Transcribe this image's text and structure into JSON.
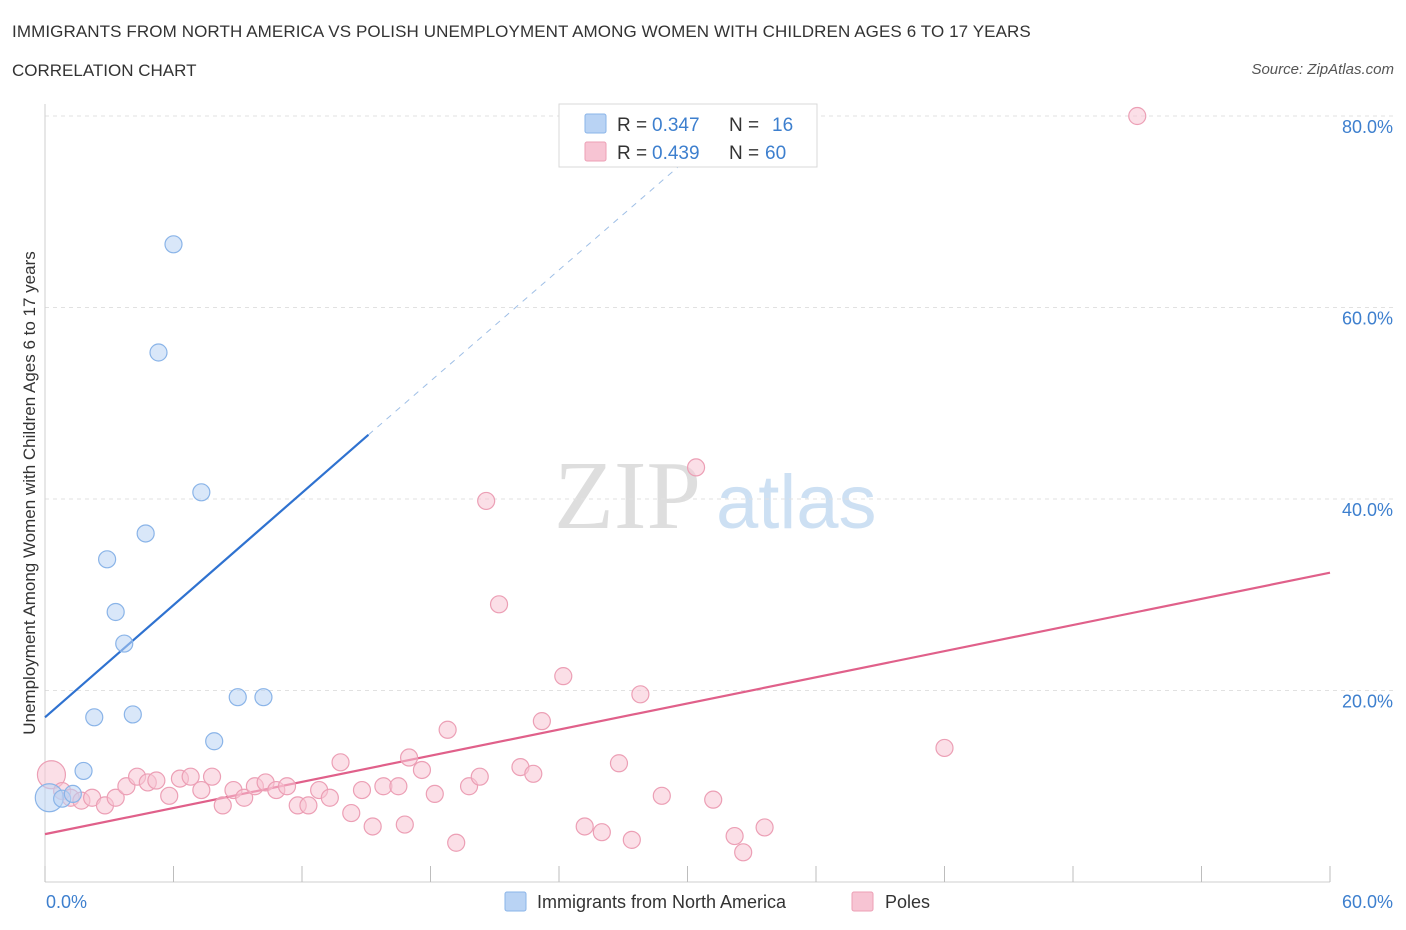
{
  "title": "IMMIGRANTS FROM NORTH AMERICA VS POLISH UNEMPLOYMENT AMONG WOMEN WITH CHILDREN AGES 6 TO 17 YEARS",
  "subtitle": "CORRELATION CHART",
  "source": "Source: ZipAtlas.com",
  "watermark": {
    "zip": "ZIP",
    "atlas": "atlas"
  },
  "colors": {
    "blue_fill": "#b9d3f4",
    "blue_stroke": "#8ab4e8",
    "blue_line": "#2f72d0",
    "pink_fill": "#f7c4d3",
    "pink_stroke": "#ec9fb5",
    "pink_line": "#e0608a",
    "accent_text": "#3d7fce"
  },
  "legend": {
    "rows": [
      {
        "r_label": "R = ",
        "r_value": "0.347",
        "n_label": "N = ",
        "n_value": "16"
      },
      {
        "r_label": "R = ",
        "r_value": "0.439",
        "n_label": "N = ",
        "n_value": "60"
      }
    ]
  },
  "chart_data": {
    "type": "scatter",
    "title": "IMMIGRANTS FROM NORTH AMERICA VS POLISH UNEMPLOYMENT AMONG WOMEN WITH CHILDREN AGES 6 TO 17 YEARS",
    "xlabel": "",
    "ylabel": "Unemployment Among Women with Children Ages 6 to 17 years",
    "xlim": [
      0,
      60
    ],
    "ylim": [
      0,
      80
    ],
    "x_tick_labels": [
      "0.0%",
      "60.0%"
    ],
    "y_ticks": [
      20,
      40,
      60,
      80
    ],
    "y_tick_labels": [
      "20.0%",
      "40.0%",
      "60.0%",
      "80.0%"
    ],
    "grid": "horizontal dashed",
    "legend_position": "top-center",
    "series": [
      {
        "name": "Immigrants from North America",
        "color": "#b9d3f4",
        "r": 0.347,
        "n": 16,
        "trend": {
          "x": [
            0,
            15.1
          ],
          "y": [
            17.2,
            46.7
          ],
          "dashed_to": [
            30.5,
            76.5
          ]
        },
        "points": [
          {
            "x": 0.2,
            "y": 8.8,
            "big": true
          },
          {
            "x": 0.8,
            "y": 8.7
          },
          {
            "x": 1.3,
            "y": 9.2
          },
          {
            "x": 1.8,
            "y": 11.6
          },
          {
            "x": 2.3,
            "y": 17.2
          },
          {
            "x": 2.9,
            "y": 33.7
          },
          {
            "x": 3.3,
            "y": 28.2
          },
          {
            "x": 3.7,
            "y": 24.9
          },
          {
            "x": 4.1,
            "y": 17.5
          },
          {
            "x": 4.7,
            "y": 36.4
          },
          {
            "x": 5.3,
            "y": 55.3
          },
          {
            "x": 6.0,
            "y": 66.6
          },
          {
            "x": 7.3,
            "y": 40.7
          },
          {
            "x": 7.9,
            "y": 14.7
          },
          {
            "x": 9.0,
            "y": 19.3
          },
          {
            "x": 10.2,
            "y": 19.3
          }
        ]
      },
      {
        "name": "Poles",
        "color": "#f7c4d3",
        "r": 0.439,
        "n": 60,
        "trend": {
          "x": [
            0,
            60
          ],
          "y": [
            5.0,
            32.3
          ]
        },
        "points": [
          {
            "x": 0.3,
            "y": 11.2,
            "big": true
          },
          {
            "x": 0.8,
            "y": 9.5
          },
          {
            "x": 1.2,
            "y": 8.8
          },
          {
            "x": 1.7,
            "y": 8.5
          },
          {
            "x": 2.2,
            "y": 8.8
          },
          {
            "x": 2.8,
            "y": 8.0
          },
          {
            "x": 3.3,
            "y": 8.8
          },
          {
            "x": 3.8,
            "y": 10.0
          },
          {
            "x": 4.3,
            "y": 11.0
          },
          {
            "x": 4.8,
            "y": 10.4
          },
          {
            "x": 5.2,
            "y": 10.6
          },
          {
            "x": 5.8,
            "y": 9.0
          },
          {
            "x": 6.3,
            "y": 10.8
          },
          {
            "x": 6.8,
            "y": 11.0
          },
          {
            "x": 7.3,
            "y": 9.6
          },
          {
            "x": 7.8,
            "y": 11.0
          },
          {
            "x": 8.3,
            "y": 8.0
          },
          {
            "x": 8.8,
            "y": 9.6
          },
          {
            "x": 9.3,
            "y": 8.8
          },
          {
            "x": 9.8,
            "y": 10.0
          },
          {
            "x": 10.3,
            "y": 10.4
          },
          {
            "x": 10.8,
            "y": 9.6
          },
          {
            "x": 11.3,
            "y": 10.0
          },
          {
            "x": 11.8,
            "y": 8.0
          },
          {
            "x": 12.3,
            "y": 8.0
          },
          {
            "x": 12.8,
            "y": 9.6
          },
          {
            "x": 13.3,
            "y": 8.8
          },
          {
            "x": 13.8,
            "y": 12.5
          },
          {
            "x": 14.3,
            "y": 7.2
          },
          {
            "x": 14.8,
            "y": 9.6
          },
          {
            "x": 15.3,
            "y": 5.8
          },
          {
            "x": 15.8,
            "y": 10.0
          },
          {
            "x": 16.5,
            "y": 10.0
          },
          {
            "x": 16.8,
            "y": 6.0
          },
          {
            "x": 17.0,
            "y": 13.0
          },
          {
            "x": 17.6,
            "y": 11.7
          },
          {
            "x": 18.2,
            "y": 9.2
          },
          {
            "x": 18.8,
            "y": 15.9
          },
          {
            "x": 19.2,
            "y": 4.1
          },
          {
            "x": 19.8,
            "y": 10.0
          },
          {
            "x": 20.3,
            "y": 11.0
          },
          {
            "x": 20.6,
            "y": 39.8
          },
          {
            "x": 21.2,
            "y": 29.0
          },
          {
            "x": 22.2,
            "y": 12.0
          },
          {
            "x": 22.8,
            "y": 11.3
          },
          {
            "x": 23.2,
            "y": 16.8
          },
          {
            "x": 24.2,
            "y": 21.5
          },
          {
            "x": 25.2,
            "y": 5.8
          },
          {
            "x": 26.0,
            "y": 5.2
          },
          {
            "x": 26.8,
            "y": 12.4
          },
          {
            "x": 27.4,
            "y": 4.4
          },
          {
            "x": 27.8,
            "y": 19.6
          },
          {
            "x": 28.8,
            "y": 9.0
          },
          {
            "x": 30.4,
            "y": 43.3
          },
          {
            "x": 31.2,
            "y": 8.6
          },
          {
            "x": 32.2,
            "y": 4.8
          },
          {
            "x": 32.6,
            "y": 3.1
          },
          {
            "x": 33.6,
            "y": 5.7
          },
          {
            "x": 42.0,
            "y": 14.0
          },
          {
            "x": 51.0,
            "y": 80.0
          }
        ]
      }
    ]
  },
  "bottom_legend": {
    "items": [
      {
        "label": "Immigrants from North America"
      },
      {
        "label": "Poles"
      }
    ]
  }
}
